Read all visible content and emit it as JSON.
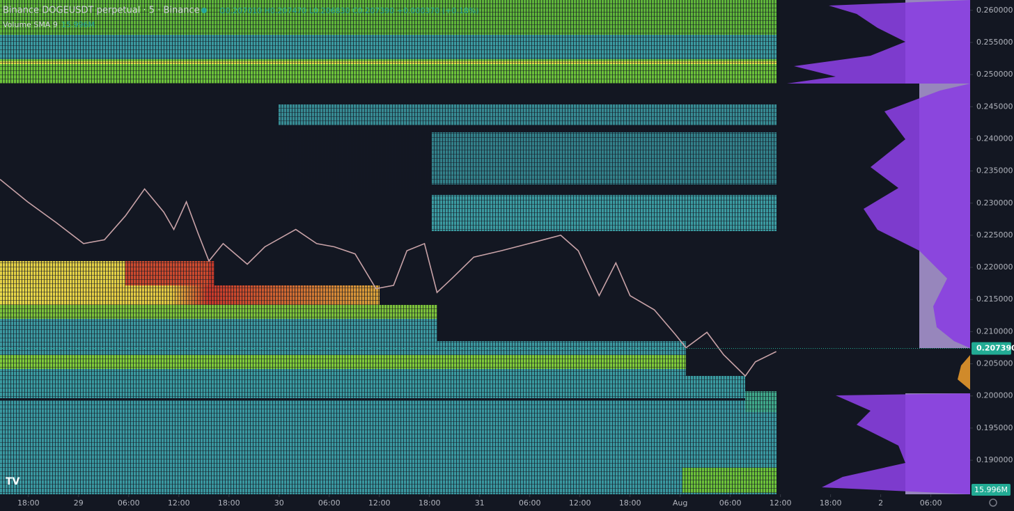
{
  "chart_data": {
    "type": "line",
    "title": "Binance DOGEUSDT perpetual · 5 · Binance",
    "ohlc": "O0.207010 H0.207470 L0.206830 C0.207390 +0.000370 (+0.18%)",
    "volume_label": "Volume SMA 9",
    "volume_value": "15.996M",
    "color": "#c9a3a8",
    "x": [
      14.6,
      17.9,
      21.3,
      24.6,
      27.1,
      29.6,
      31.9,
      34.2,
      35.4,
      36.9,
      38.3,
      39.6,
      41.3,
      44.2,
      46.3,
      50.0,
      52.5,
      54.6,
      57.1,
      59.6,
      61.7,
      63.3,
      65.4,
      66.9,
      68.7,
      71.3,
      74.6,
      77.9,
      81.7,
      83.8,
      86.3,
      88.3,
      90.0,
      92.9,
      95.4,
      96.7,
      99.2,
      101.2,
      103.8,
      105.0,
      107.5
    ],
    "values": [
      0.2337,
      0.2302,
      0.227,
      0.2237,
      0.2243,
      0.228,
      0.2322,
      0.2286,
      0.2259,
      0.2302,
      0.2253,
      0.221,
      0.2237,
      0.2205,
      0.2232,
      0.2259,
      0.2237,
      0.2232,
      0.2221,
      0.2167,
      0.2172,
      0.2226,
      0.2237,
      0.2161,
      0.2183,
      0.2216,
      0.2226,
      0.2237,
      0.225,
      0.2226,
      0.2156,
      0.2207,
      0.2156,
      0.2134,
      0.2096,
      0.2075,
      0.2099,
      0.2064,
      0.2031,
      0.2053,
      0.2069
    ],
    "last_price": {
      "value": 0.20739,
      "label": "0.207390"
    },
    "xlim": [
      14.6,
      130.7
    ],
    "ylim": [
      0.1847,
      0.2616
    ],
    "xticks": [
      {
        "value": 18,
        "label": "18:00"
      },
      {
        "value": 24,
        "label": "29"
      },
      {
        "value": 30,
        "label": "06:00"
      },
      {
        "value": 36,
        "label": "12:00"
      },
      {
        "value": 42,
        "label": "18:00"
      },
      {
        "value": 48,
        "label": "30"
      },
      {
        "value": 54,
        "label": "06:00"
      },
      {
        "value": 60,
        "label": "12:00"
      },
      {
        "value": 66,
        "label": "18:00"
      },
      {
        "value": 72,
        "label": "31"
      },
      {
        "value": 78,
        "label": "06:00"
      },
      {
        "value": 84,
        "label": "12:00"
      },
      {
        "value": 90,
        "label": "18:00"
      },
      {
        "value": 96,
        "label": "Aug"
      },
      {
        "value": 102,
        "label": "06:00"
      },
      {
        "value": 108,
        "label": "12:00"
      },
      {
        "value": 114,
        "label": "18:00"
      },
      {
        "value": 120,
        "label": "2"
      },
      {
        "value": 126,
        "label": "06:00"
      }
    ],
    "yticks": [
      {
        "value": 0.19,
        "label": "0.190000"
      },
      {
        "value": 0.195,
        "label": "0.195000"
      },
      {
        "value": 0.2,
        "label": "0.200000"
      },
      {
        "value": 0.205,
        "label": "0.205000"
      },
      {
        "value": 0.21,
        "label": "0.210000"
      },
      {
        "value": 0.215,
        "label": "0.215000"
      },
      {
        "value": 0.22,
        "label": "0.220000"
      },
      {
        "value": 0.225,
        "label": "0.225000"
      },
      {
        "value": 0.23,
        "label": "0.230000"
      },
      {
        "value": 0.235,
        "label": "0.235000"
      },
      {
        "value": 0.24,
        "label": "0.240000"
      },
      {
        "value": 0.245,
        "label": "0.245000"
      },
      {
        "value": 0.25,
        "label": "0.250000"
      },
      {
        "value": 0.255,
        "label": "0.255000"
      },
      {
        "value": 0.26,
        "label": "0.260000"
      }
    ]
  }
}
